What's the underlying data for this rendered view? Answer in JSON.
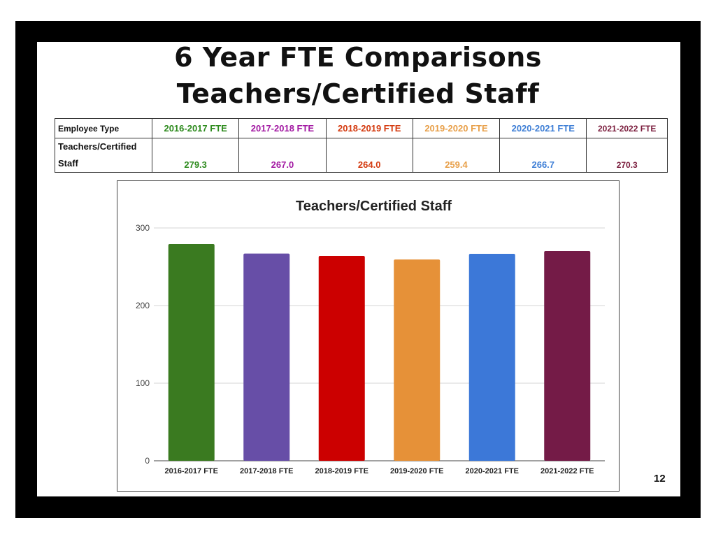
{
  "slide": {
    "title_line1": "6 Year FTE Comparisons",
    "title_line2": "Teachers/Certified Staff",
    "page_number": "12"
  },
  "table": {
    "header_label": "Employee Type",
    "columns": [
      {
        "label": "2016-2017 FTE",
        "color": "#2e8b1e"
      },
      {
        "label": "2017-2018 FTE",
        "color": "#a31aa3"
      },
      {
        "label": "2018-2019 FTE",
        "color": "#d43a0f"
      },
      {
        "label": "2019-2020 FTE",
        "color": "#e8a04a"
      },
      {
        "label": "2020-2021 FTE",
        "color": "#3f7fd6"
      },
      {
        "label": "2021-2022 FTE",
        "color": "#7a1c3c"
      }
    ],
    "row_label_line1": "Teachers/Certified",
    "row_label_line2": "Staff",
    "values": [
      "279.3",
      "267.0",
      "264.0",
      "259.4",
      "266.7",
      "270.3"
    ]
  },
  "chart_data": {
    "type": "bar",
    "title": "Teachers/Certified Staff",
    "categories": [
      "2016-2017 FTE",
      "2017-2018 FTE",
      "2018-2019 FTE",
      "2019-2020 FTE",
      "2020-2021 FTE",
      "2021-2022 FTE"
    ],
    "values": [
      279.3,
      267.0,
      264.0,
      259.4,
      266.7,
      270.3
    ],
    "colors": [
      "#3a7a20",
      "#674ea7",
      "#cc0000",
      "#e69138",
      "#3c78d8",
      "#741b47"
    ],
    "ylim": [
      0,
      300
    ],
    "yticks": [
      0,
      100,
      200,
      300
    ],
    "grid": true,
    "xlabel": "",
    "ylabel": ""
  }
}
